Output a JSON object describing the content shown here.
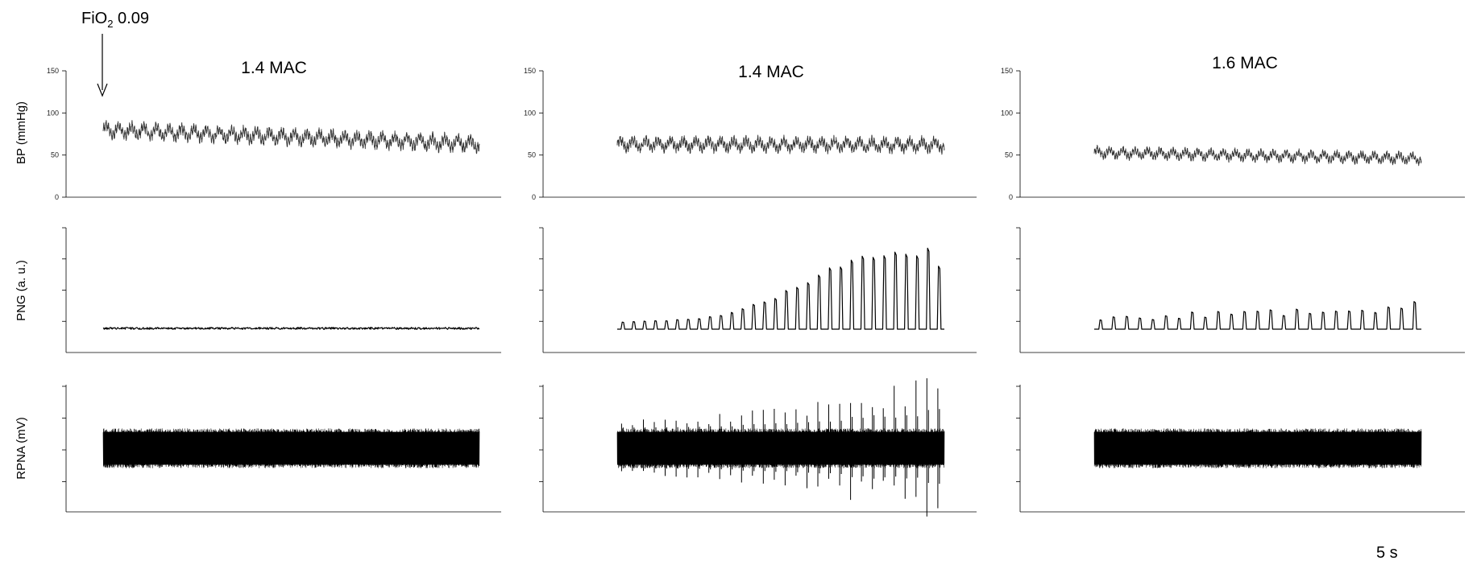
{
  "annotations": {
    "fio2_main": "FiO",
    "fio2_sub": "2",
    "fio2_value": " 0.09",
    "scale_bar": "5 s"
  },
  "rows": [
    {
      "key": "bp",
      "label": "BP (mmHg)"
    },
    {
      "key": "png",
      "label": "PNG (a. u.)"
    },
    {
      "key": "rpna",
      "label": "RPNA (mV)"
    }
  ],
  "chart_data": {
    "type": "line",
    "panels": [
      {
        "title": "1.4 MAC",
        "column": 0
      },
      {
        "title": "1.4 MAC",
        "column": 1
      },
      {
        "title": "1.6 MAC",
        "column": 2
      }
    ],
    "bp": {
      "ylabel": "BP (mmHg)",
      "ylim": [
        0,
        150
      ],
      "yticks": [
        0,
        50,
        100,
        150
      ],
      "series": [
        {
          "start_mean": 80,
          "end_mean": 63,
          "amplitude": 10
        },
        {
          "start_mean": 63,
          "end_mean": 62,
          "amplitude": 9
        },
        {
          "start_mean": 53,
          "end_mean": 46,
          "amplitude": 7
        }
      ]
    },
    "png": {
      "ylabel": "PNG (a. u.)",
      "units": "a. u.",
      "bursts": [
        {
          "burst_count": 0,
          "peak_start": 0,
          "peak_end": 0
        },
        {
          "burst_count": 30,
          "peak_start": 0.08,
          "peak_end": 0.95
        },
        {
          "burst_count": 25,
          "peak_start": 0.12,
          "peak_end": 0.27
        }
      ]
    },
    "rpna": {
      "ylabel": "RPNA (mV)",
      "units": "mV",
      "series": [
        {
          "noise_amplitude": 0.17,
          "spikes": false
        },
        {
          "noise_amplitude": 0.17,
          "spikes": true
        },
        {
          "noise_amplitude": 0.17,
          "spikes": false
        }
      ]
    }
  }
}
